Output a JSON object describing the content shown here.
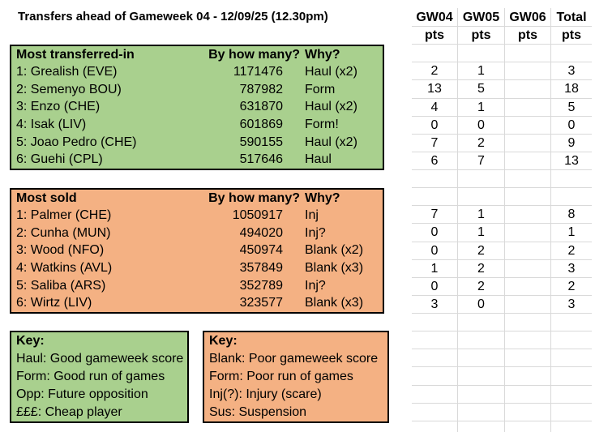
{
  "title": "Transfers ahead of Gameweek 04 - 12/09/25 (12.30pm)",
  "transferred_in": {
    "header": "Most transferred-in",
    "col_count": "By how many?",
    "col_why": "Why?",
    "rows": [
      {
        "player": "1: Grealish (EVE)",
        "count": "1171476",
        "why": "Haul (x2)"
      },
      {
        "player": "2: Semenyo BOU)",
        "count": "787982",
        "why": "Form"
      },
      {
        "player": "3: Enzo (CHE)",
        "count": "631870",
        "why": "Haul (x2)"
      },
      {
        "player": "4: Isak (LIV)",
        "count": "601869",
        "why": "Form!"
      },
      {
        "player": "5: Joao Pedro (CHE)",
        "count": "590155",
        "why": "Haul (x2)"
      },
      {
        "player": "6: Guehi (CPL)",
        "count": "517646",
        "why": "Haul"
      }
    ]
  },
  "most_sold": {
    "header": "Most sold",
    "col_count": "By how many?",
    "col_why": "Why?",
    "rows": [
      {
        "player": "1: Palmer (CHE)",
        "count": "1050917",
        "why": "Inj"
      },
      {
        "player": "2: Cunha (MUN)",
        "count": "494020",
        "why": "Inj?"
      },
      {
        "player": "3: Wood (NFO)",
        "count": "450974",
        "why": "Blank (x2)"
      },
      {
        "player": "4: Watkins (AVL)",
        "count": "357849",
        "why": "Blank (x3)"
      },
      {
        "player": "5: Saliba (ARS)",
        "count": "352789",
        "why": "Inj?"
      },
      {
        "player": "6: Wirtz (LIV)",
        "count": "323577",
        "why": "Blank (x3)"
      }
    ]
  },
  "key_green": {
    "title": "Key:",
    "lines": [
      "Haul: Good gameweek score",
      "Form: Good run of games",
      "Opp: Future opposition",
      "£££: Cheap player"
    ]
  },
  "key_orange": {
    "title": "Key:",
    "lines": [
      "Blank: Poor gameweek score",
      "Form: Poor run of games",
      "Inj(?): Injury (scare)",
      "Sus: Suspension"
    ]
  },
  "points_grid": {
    "columns": [
      "GW04",
      "GW05",
      "GW06",
      "Total"
    ],
    "sub_header": "pts",
    "rows": [
      [
        "GW04",
        "GW05",
        "GW06",
        "Total"
      ],
      [
        "pts",
        "pts",
        "pts",
        "pts"
      ],
      [
        "",
        "",
        "",
        ""
      ],
      [
        "2",
        "1",
        "",
        "3"
      ],
      [
        "13",
        "5",
        "",
        "18"
      ],
      [
        "4",
        "1",
        "",
        "5"
      ],
      [
        "0",
        "0",
        "",
        "0"
      ],
      [
        "7",
        "2",
        "",
        "9"
      ],
      [
        "6",
        "7",
        "",
        "13"
      ],
      [
        "",
        "",
        "",
        ""
      ],
      [
        "",
        "",
        "",
        ""
      ],
      [
        "7",
        "1",
        "",
        "8"
      ],
      [
        "0",
        "1",
        "",
        "1"
      ],
      [
        "0",
        "2",
        "",
        "2"
      ],
      [
        "1",
        "2",
        "",
        "3"
      ],
      [
        "0",
        "2",
        "",
        "2"
      ],
      [
        "3",
        "0",
        "",
        "3"
      ],
      [
        "",
        "",
        "",
        ""
      ],
      [
        "",
        "",
        "",
        ""
      ],
      [
        "",
        "",
        "",
        ""
      ],
      [
        "",
        "",
        "",
        ""
      ],
      [
        "",
        "",
        "",
        ""
      ],
      [
        "",
        "",
        "",
        ""
      ],
      [
        "",
        "",
        "",
        ""
      ]
    ]
  },
  "colors": {
    "green_fill": "#a9d08e",
    "orange_fill": "#f4b183",
    "gridline": "#d9d9d9",
    "table_border": "#000000"
  }
}
